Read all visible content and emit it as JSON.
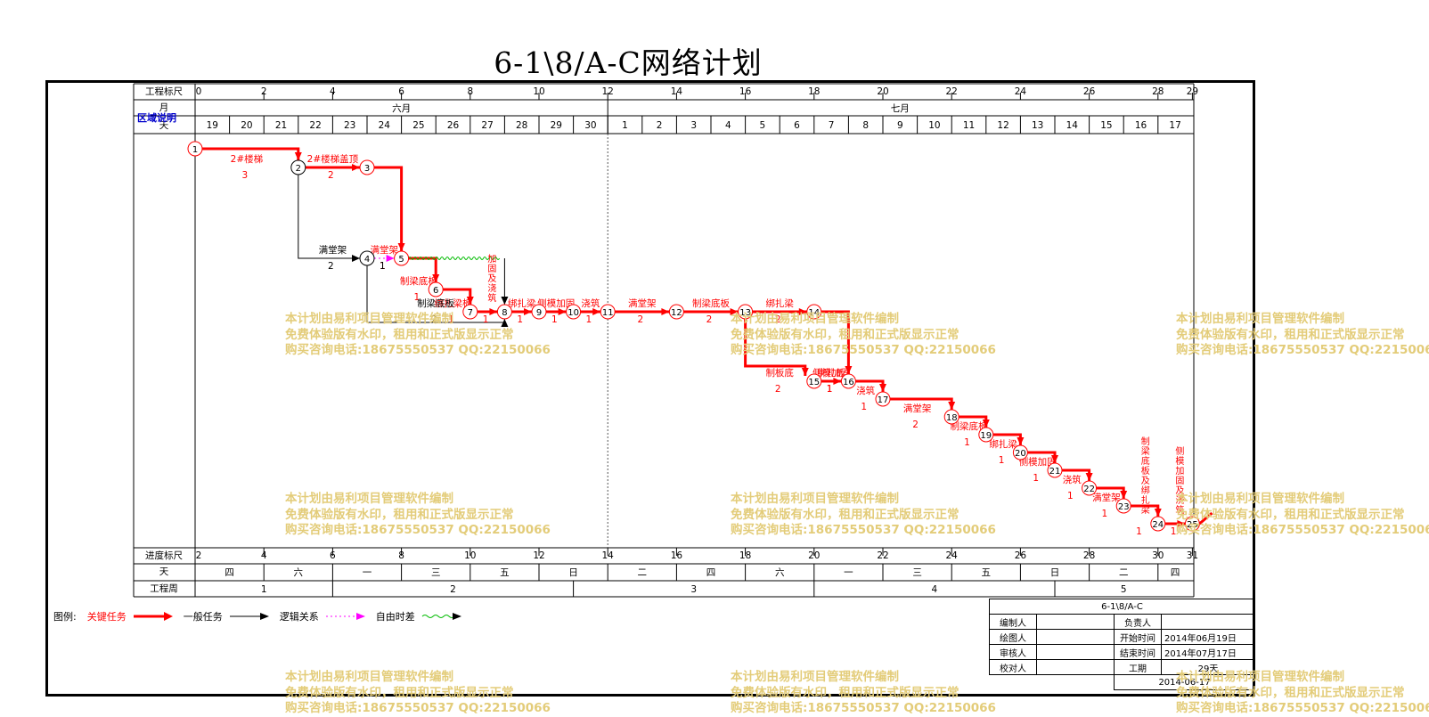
{
  "title": "6-1\\8/A-C网络计划",
  "header": {
    "scale_label": "工程标尺",
    "month_label": "月",
    "day_label": "天",
    "area_note": "区域说明",
    "scale_ticks": [
      "0",
      "2",
      "4",
      "6",
      "8",
      "10",
      "12",
      "14",
      "16",
      "18",
      "20",
      "22",
      "24",
      "26",
      "28",
      "29"
    ],
    "months": [
      "六月",
      "七月"
    ],
    "days": [
      "19",
      "20",
      "21",
      "22",
      "23",
      "24",
      "25",
      "26",
      "27",
      "28",
      "29",
      "30",
      "1",
      "2",
      "3",
      "4",
      "5",
      "6",
      "7",
      "8",
      "9",
      "10",
      "11",
      "12",
      "13",
      "14",
      "15",
      "16",
      "17"
    ]
  },
  "footer": {
    "progress_label": "进度标尺",
    "progress_ticks": [
      "2",
      "4",
      "6",
      "8",
      "10",
      "12",
      "14",
      "16",
      "18",
      "20",
      "22",
      "24",
      "26",
      "28",
      "30",
      "31"
    ],
    "weekday_label": "天",
    "weekdays": [
      "四",
      "六",
      "一",
      "三",
      "五",
      "日",
      "二",
      "四",
      "六",
      "一",
      "三",
      "五",
      "日",
      "二",
      "四"
    ],
    "week_label": "工程周",
    "weeks": [
      "1",
      "2",
      "3",
      "4",
      "5"
    ]
  },
  "legend": {
    "label": "图例:",
    "items": [
      {
        "name": "关键任务",
        "color": "#ff0000"
      },
      {
        "name": "一般任务",
        "color": "#000000"
      },
      {
        "name": "逻辑关系",
        "color": "#ff00ff"
      },
      {
        "name": "自由时差",
        "color": "#00bb00"
      }
    ]
  },
  "info": {
    "title": "6-1\\8/A-C",
    "editor_label": "编制人",
    "owner_label": "负责人",
    "drawer_label": "绘图人",
    "start_label": "开始时间",
    "start_value": "2014年06月19日",
    "reviewer_label": "审核人",
    "end_label": "结束时间",
    "end_value": "2014年07月17日",
    "checker_label": "校对人",
    "duration_label": "工期",
    "duration_value": "29天",
    "date": "2014-06-17"
  },
  "watermark": {
    "line1": "本计划由易利项目管理软件编制",
    "line2": "免费体验版有水印，租用和正式版显示正常",
    "line3": "购买咨询电话:18675550537 QQ:22150066"
  },
  "network": {
    "nodes": [
      {
        "id": "1",
        "day": 0,
        "lane": 0,
        "critical": true
      },
      {
        "id": "2",
        "day": 3,
        "lane": 1,
        "critical": false
      },
      {
        "id": "3",
        "day": 5,
        "lane": 1,
        "critical": true
      },
      {
        "id": "4",
        "day": 5,
        "lane": 2,
        "critical": false
      },
      {
        "id": "5",
        "day": 6,
        "lane": 2,
        "critical": true
      },
      {
        "id": "6",
        "day": 7,
        "lane": 3,
        "critical": true
      },
      {
        "id": "7",
        "day": 8,
        "lane": 4,
        "critical": true
      },
      {
        "id": "8",
        "day": 9,
        "lane": 4,
        "critical": true
      },
      {
        "id": "9",
        "day": 10,
        "lane": 4,
        "critical": true
      },
      {
        "id": "10",
        "day": 11,
        "lane": 4,
        "critical": true
      },
      {
        "id": "11",
        "day": 12,
        "lane": 4,
        "critical": true
      },
      {
        "id": "12",
        "day": 14,
        "lane": 4,
        "critical": true
      },
      {
        "id": "13",
        "day": 16,
        "lane": 4,
        "critical": true
      },
      {
        "id": "14",
        "day": 18,
        "lane": 4,
        "critical": true
      },
      {
        "id": "15",
        "day": 18,
        "lane": 5,
        "critical": true
      },
      {
        "id": "16",
        "day": 19,
        "lane": 5,
        "critical": true
      },
      {
        "id": "17",
        "day": 20,
        "lane": 6,
        "critical": true
      },
      {
        "id": "18",
        "day": 22,
        "lane": 7,
        "critical": true
      },
      {
        "id": "19",
        "day": 23,
        "lane": 8,
        "critical": true
      },
      {
        "id": "20",
        "day": 24,
        "lane": 9,
        "critical": true
      },
      {
        "id": "21",
        "day": 25,
        "lane": 10,
        "critical": true
      },
      {
        "id": "22",
        "day": 26,
        "lane": 11,
        "critical": true
      },
      {
        "id": "23",
        "day": 27,
        "lane": 12,
        "critical": true
      },
      {
        "id": "24",
        "day": 28,
        "lane": 13,
        "critical": true
      },
      {
        "id": "25",
        "day": 29,
        "lane": 13,
        "critical": true
      }
    ],
    "tasks": [
      {
        "from": "1",
        "to": "2",
        "name": "2#楼梯",
        "duration": "3",
        "kind": "critical"
      },
      {
        "from": "2",
        "to": "3",
        "name": "2#楼梯盖顶",
        "duration": "2",
        "kind": "critical"
      },
      {
        "from": "3",
        "to": "5",
        "name": "满堂架",
        "duration": "1",
        "kind": "critical"
      },
      {
        "from": "2",
        "to": "4",
        "name": "满堂架",
        "duration": "2",
        "kind": "normal"
      },
      {
        "from": "4",
        "to": "5",
        "name": "",
        "duration": "1",
        "kind": "logic"
      },
      {
        "from": "5",
        "to": "6",
        "name": "制梁底板",
        "duration": "1",
        "kind": "critical"
      },
      {
        "from": "5",
        "to": "8",
        "name": "制梁底板",
        "duration": "",
        "kind": "free"
      },
      {
        "from": "6",
        "to": "7",
        "name": "绑扎梁板",
        "duration": "1",
        "kind": "critical"
      },
      {
        "from": "4",
        "to": "8",
        "name": "制梁底板",
        "duration": "2",
        "kind": "normal"
      },
      {
        "from": "7",
        "to": "8",
        "name": "加固及浇筑",
        "duration": "1",
        "kind": "critical"
      },
      {
        "from": "8",
        "to": "9",
        "name": "绑扎梁",
        "duration": "1",
        "kind": "critical"
      },
      {
        "from": "9",
        "to": "10",
        "name": "侧模加固",
        "duration": "1",
        "kind": "critical"
      },
      {
        "from": "10",
        "to": "11",
        "name": "浇筑",
        "duration": "1",
        "kind": "critical"
      },
      {
        "from": "11",
        "to": "12",
        "name": "满堂架",
        "duration": "2",
        "kind": "critical"
      },
      {
        "from": "12",
        "to": "13",
        "name": "制梁底板",
        "duration": "2",
        "kind": "critical"
      },
      {
        "from": "13",
        "to": "14",
        "name": "绑扎梁",
        "duration": "2",
        "kind": "critical"
      },
      {
        "from": "14",
        "to": "16",
        "name": "侧模加固",
        "duration": "1",
        "kind": "critical"
      },
      {
        "from": "13",
        "to": "15",
        "name": "制板底",
        "duration": "2",
        "kind": "critical"
      },
      {
        "from": "15",
        "to": "16",
        "name": "绑扎板",
        "duration": "1",
        "kind": "critical"
      },
      {
        "from": "16",
        "to": "17",
        "name": "浇筑",
        "duration": "1",
        "kind": "critical"
      },
      {
        "from": "17",
        "to": "18",
        "name": "满堂架",
        "duration": "2",
        "kind": "critical"
      },
      {
        "from": "18",
        "to": "19",
        "name": "制梁底板",
        "duration": "1",
        "kind": "critical"
      },
      {
        "from": "19",
        "to": "20",
        "name": "绑扎梁",
        "duration": "1",
        "kind": "critical"
      },
      {
        "from": "20",
        "to": "21",
        "name": "侧模加固",
        "duration": "1",
        "kind": "critical"
      },
      {
        "from": "21",
        "to": "22",
        "name": "浇筑",
        "duration": "1",
        "kind": "critical"
      },
      {
        "from": "22",
        "to": "23",
        "name": "满堂架",
        "duration": "1",
        "kind": "critical"
      },
      {
        "from": "23",
        "to": "24",
        "name": "制梁底板及绑扎梁",
        "duration": "1",
        "kind": "critical"
      },
      {
        "from": "24",
        "to": "25",
        "name": "侧模加固及浇筑",
        "duration": "1",
        "kind": "critical"
      }
    ]
  },
  "colors": {
    "critical": "#ff0000",
    "normal": "#000000",
    "logic": "#ff00ff",
    "free": "#00bb00",
    "watermark": "#e3cc79",
    "area_note": "#0000cc"
  }
}
